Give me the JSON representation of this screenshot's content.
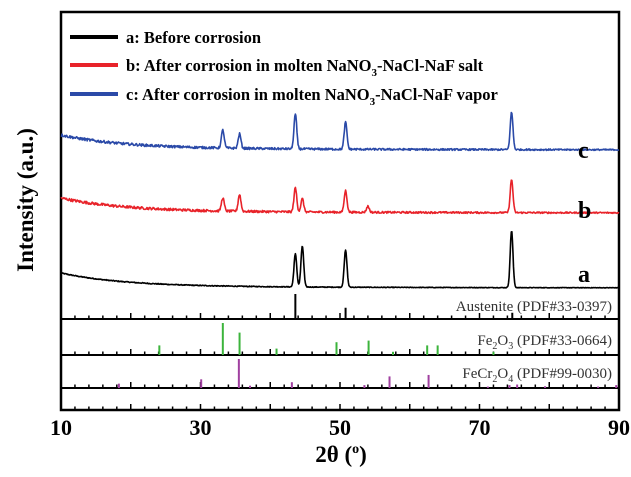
{
  "chart_data": {
    "type": "line",
    "xlabel": "2θ (°)",
    "ylabel": "Intensity (a.u.)",
    "xlim": [
      10,
      90
    ],
    "x_ticks": [
      10,
      30,
      50,
      70,
      90
    ],
    "grid": false,
    "legend_position": "top",
    "series": [
      {
        "name": "a: Before corrosion",
        "label": "a",
        "color": "#000000",
        "baseline": 1.0,
        "peaks": [
          {
            "x": 43.6,
            "h": 0.55
          },
          {
            "x": 44.6,
            "h": 0.68
          },
          {
            "x": 50.8,
            "h": 0.62
          },
          {
            "x": 74.6,
            "h": 0.95
          }
        ]
      },
      {
        "name": "b: After corrosion in molten NaNO3-NaCl-NaF salt",
        "label": "b",
        "color": "#e8232a",
        "baseline": 2.25,
        "peaks": [
          {
            "x": 33.2,
            "h": 0.22
          },
          {
            "x": 35.6,
            "h": 0.28
          },
          {
            "x": 43.6,
            "h": 0.4
          },
          {
            "x": 44.6,
            "h": 0.22
          },
          {
            "x": 50.8,
            "h": 0.36
          },
          {
            "x": 54.0,
            "h": 0.1
          },
          {
            "x": 74.6,
            "h": 0.55
          }
        ]
      },
      {
        "name": "c: After corrosion in molten NaNO3-NaCl-NaF vapor",
        "label": "c",
        "color": "#2b4aa8",
        "baseline": 3.3,
        "peaks": [
          {
            "x": 33.2,
            "h": 0.3
          },
          {
            "x": 35.6,
            "h": 0.24
          },
          {
            "x": 43.6,
            "h": 0.58
          },
          {
            "x": 50.8,
            "h": 0.45
          },
          {
            "x": 74.6,
            "h": 0.62
          }
        ]
      }
    ],
    "legend": [
      {
        "prefix": "a: Before corrosion",
        "sub": "",
        "suffix": "",
        "color": "#000000"
      },
      {
        "prefix": "b: After corrosion in molten NaNO",
        "sub": "3",
        "suffix": "-NaCl-NaF salt",
        "color": "#e8232a"
      },
      {
        "prefix": "c: After corrosion in molten NaNO",
        "sub": "3",
        "suffix": "-NaCl-NaF vapor",
        "color": "#2b4aa8"
      }
    ],
    "references": [
      {
        "label_main": "Austenite (PDF#33-0397)",
        "color": "#000000",
        "lines": [
          {
            "x": 43.6,
            "h": 1.0
          },
          {
            "x": 50.8,
            "h": 0.45
          },
          {
            "x": 74.7,
            "h": 0.25
          },
          {
            "x": 90.6,
            "h": 0.2
          }
        ]
      },
      {
        "label_main": "Fe2O3 (PDF#33-0664)",
        "color": "#3cb43c",
        "lines": [
          {
            "x": 24.1,
            "h": 0.3
          },
          {
            "x": 33.2,
            "h": 1.0
          },
          {
            "x": 35.6,
            "h": 0.7
          },
          {
            "x": 40.9,
            "h": 0.2
          },
          {
            "x": 49.5,
            "h": 0.4
          },
          {
            "x": 54.1,
            "h": 0.45
          },
          {
            "x": 57.6,
            "h": 0.1
          },
          {
            "x": 62.5,
            "h": 0.3
          },
          {
            "x": 64.0,
            "h": 0.3
          },
          {
            "x": 72.0,
            "h": 0.1
          }
        ]
      },
      {
        "label_main": "FeCr2O4 (PDF#99-0030)",
        "color": "#a040a0",
        "lines": [
          {
            "x": 18.3,
            "h": 0.15
          },
          {
            "x": 30.1,
            "h": 0.3
          },
          {
            "x": 35.5,
            "h": 1.0
          },
          {
            "x": 37.1,
            "h": 0.08
          },
          {
            "x": 43.1,
            "h": 0.2
          },
          {
            "x": 53.5,
            "h": 0.1
          },
          {
            "x": 57.1,
            "h": 0.4
          },
          {
            "x": 62.7,
            "h": 0.45
          },
          {
            "x": 71.2,
            "h": 0.05
          },
          {
            "x": 74.3,
            "h": 0.1
          },
          {
            "x": 75.4,
            "h": 0.12
          },
          {
            "x": 79.4,
            "h": 0.06
          },
          {
            "x": 87.0,
            "h": 0.05
          },
          {
            "x": 89.6,
            "h": 0.1
          }
        ]
      }
    ]
  },
  "legend_items": [
    {
      "prefix": "a: Before corrosion",
      "sub": "",
      "suffix": ""
    },
    {
      "prefix": "b: After corrosion in molten NaNO",
      "sub": "3",
      "suffix": "-NaCl-NaF salt"
    },
    {
      "prefix": "c: After corrosion in molten NaNO",
      "sub": "3",
      "suffix": "-NaCl-NaF vapor"
    }
  ],
  "ref_labels": [
    {
      "main": "Austenite (PDF#33-0397)",
      "pre": "",
      "sub1": "",
      "mid": "",
      "sub2": "",
      "post": ""
    },
    {
      "main": "",
      "pre": "Fe",
      "sub1": "2",
      "mid": "O",
      "sub2": "3",
      "post": " (PDF#33-0664)"
    },
    {
      "main": "",
      "pre": "FeCr",
      "sub1": "2",
      "mid": "O",
      "sub2": "4",
      "post": " (PDF#99-0030)"
    }
  ],
  "series_labels": [
    "a",
    "b",
    "c"
  ],
  "axes": {
    "xlabel_main": "2θ (",
    "xlabel_sup": "o",
    "xlabel_end": ")",
    "ylabel": "Intensity (a.u.)"
  }
}
